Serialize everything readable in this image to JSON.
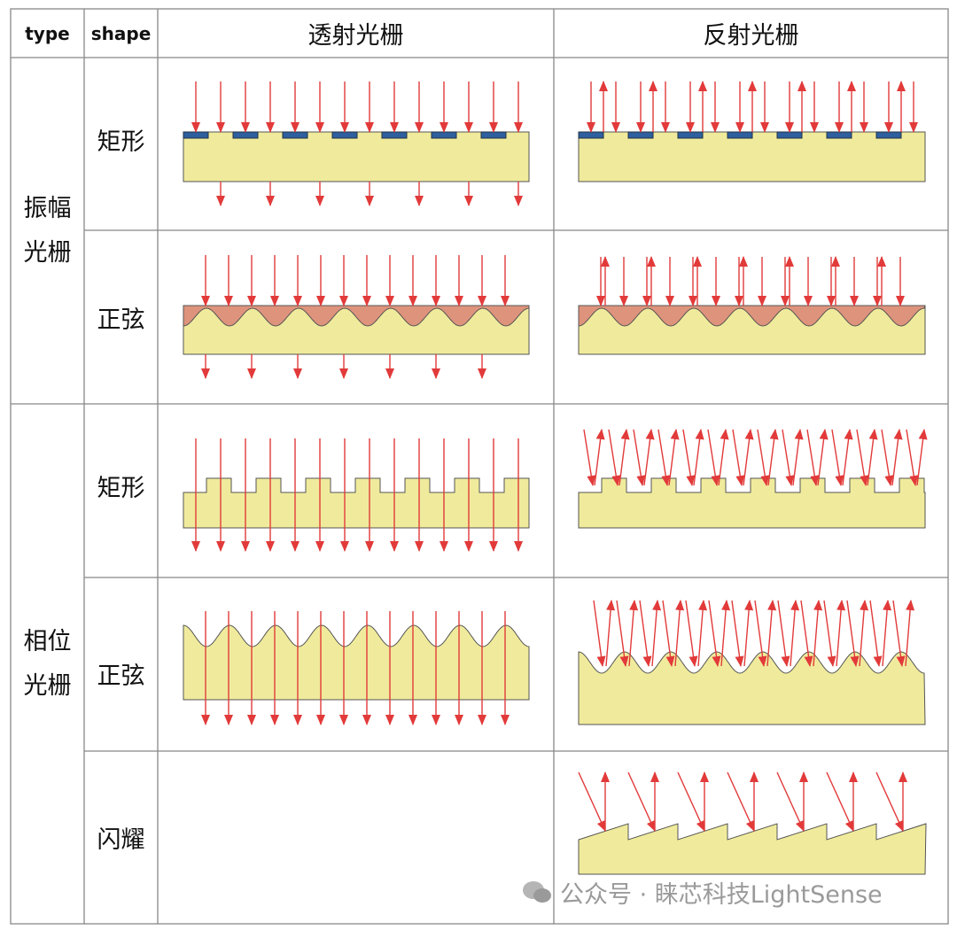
{
  "table": {
    "header": [
      "type",
      "shape",
      "透射光栅",
      "反射光栅"
    ],
    "groups": [
      {
        "type": "振幅光栅",
        "shapes": [
          "矩形",
          "正弦"
        ]
      },
      {
        "type": "相位光栅",
        "shapes": [
          "矩形",
          "正弦",
          "闪耀"
        ]
      }
    ]
  },
  "watermark": "公众号 · 睐芯科技LightSense"
}
